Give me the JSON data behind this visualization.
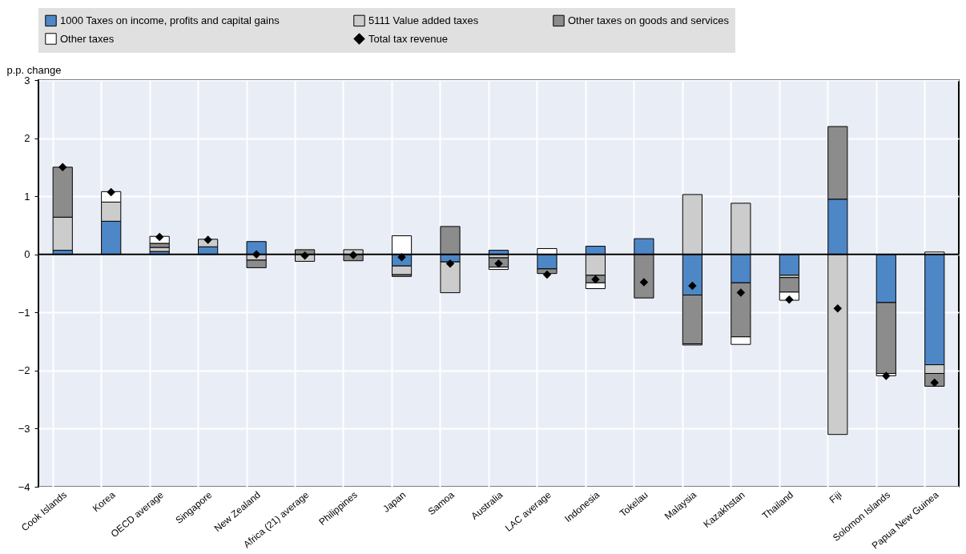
{
  "chart_data": {
    "type": "bar",
    "stacked": true,
    "ylabel": "p.p. change",
    "categories": [
      "Cook Islands",
      "Korea",
      "OECD average",
      "Singapore",
      "New Zealand",
      "Africa (21) average",
      "Philippines",
      "Japan",
      "Samoa",
      "Australia",
      "LAC average",
      "Indonesia",
      "Tokelau",
      "Malaysia",
      "Kazakhstan",
      "Thailand",
      "Fiji",
      "Solomon Islands",
      "Papua New Guinea"
    ],
    "series": [
      {
        "name": "1000 Taxes on income, profits and capital gains",
        "color": "#4e87c6",
        "values": [
          0.07,
          0.57,
          0.05,
          0.13,
          0.22,
          null,
          null,
          -0.2,
          -0.13,
          0.07,
          -0.25,
          0.14,
          0.27,
          -0.7,
          -0.49,
          -0.36,
          0.95,
          -0.83,
          -1.9
        ]
      },
      {
        "name": "5111 Value added taxes",
        "color": "#cccccc",
        "values": [
          0.57,
          0.33,
          0.07,
          0.13,
          -0.1,
          -0.12,
          0.08,
          -0.15,
          -0.53,
          -0.06,
          null,
          -0.36,
          null,
          1.03,
          0.88,
          -0.04,
          -3.1,
          null,
          -0.15
        ]
      },
      {
        "name": "Other taxes on goods and services",
        "color": "#8c8c8c",
        "values": [
          0.86,
          null,
          0.07,
          null,
          -0.13,
          0.08,
          -0.11,
          -0.03,
          0.48,
          -0.16,
          -0.08,
          -0.13,
          -0.75,
          -0.84,
          -0.93,
          -0.25,
          1.25,
          -1.22,
          -0.22
        ]
      },
      {
        "name": "Other taxes",
        "color": "#ffffff",
        "values": [
          null,
          0.18,
          0.12,
          null,
          null,
          null,
          null,
          0.32,
          null,
          -0.04,
          0.1,
          -0.1,
          null,
          -0.02,
          -0.13,
          -0.14,
          null,
          -0.04,
          0.04
        ]
      },
      {
        "name": "Total tax revenue",
        "type": "scatter",
        "marker": "diamond",
        "color": "#000000",
        "values": [
          1.5,
          1.07,
          0.3,
          0.25,
          0.0,
          -0.02,
          -0.01,
          -0.05,
          -0.16,
          -0.16,
          -0.35,
          -0.43,
          -0.48,
          -0.54,
          -0.66,
          -0.78,
          -0.93,
          -2.09,
          -2.21
        ]
      }
    ],
    "ylim": [
      -4,
      3
    ],
    "yticks": [
      -4,
      -3,
      -2,
      -1,
      0,
      1,
      2,
      3
    ],
    "grid": true,
    "legend": "top",
    "ref_lines": [
      {
        "axis": "y",
        "value": 0,
        "color": "#000000"
      }
    ]
  }
}
